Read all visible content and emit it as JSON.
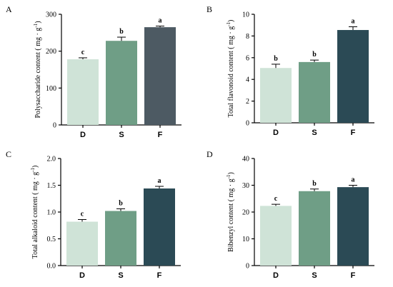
{
  "chart_data": [
    {
      "panel": "A",
      "type": "bar",
      "categories": [
        "D",
        "S",
        "F"
      ],
      "values": [
        178,
        228,
        265
      ],
      "errors": [
        4,
        10,
        3
      ],
      "significance": [
        "c",
        "b",
        "a"
      ],
      "ylabel": "Polysaccharide content ( mg · g",
      "ylabel_sup": "-1",
      "ylabel_close": ")",
      "ylim": [
        0,
        300
      ],
      "yticks": [
        "0",
        "100",
        "200",
        "300"
      ],
      "grid": false
    },
    {
      "panel": "B",
      "type": "bar",
      "categories": [
        "D",
        "S",
        "F"
      ],
      "values": [
        5.05,
        5.6,
        8.55
      ],
      "errors": [
        0.35,
        0.18,
        0.3
      ],
      "significance": [
        "b",
        "b",
        "a"
      ],
      "ylabel": "Total flavonoid content ( mg · g",
      "ylabel_sup": "-1",
      "ylabel_close": ")",
      "ylim": [
        0,
        10
      ],
      "yticks": [
        "0",
        "2",
        "4",
        "6",
        "8",
        "10"
      ],
      "grid": false
    },
    {
      "panel": "C",
      "type": "bar",
      "categories": [
        "D",
        "S",
        "F"
      ],
      "values": [
        0.82,
        1.02,
        1.44
      ],
      "errors": [
        0.04,
        0.04,
        0.04
      ],
      "significance": [
        "c",
        "b",
        "a"
      ],
      "ylabel": "Total alkaloid content ( mg · g",
      "ylabel_sup": "-1",
      "ylabel_close": ")",
      "ylim": [
        0,
        2
      ],
      "yticks": [
        "0.0",
        "0.5",
        "1.0",
        "1.5",
        "2.0"
      ],
      "grid": false
    },
    {
      "panel": "D",
      "type": "bar",
      "categories": [
        "D",
        "S",
        "F"
      ],
      "values": [
        22.3,
        27.8,
        29.3
      ],
      "errors": [
        0.6,
        0.8,
        0.7
      ],
      "significance": [
        "c",
        "b",
        "a"
      ],
      "ylabel": "Bibenzyl content ( mg · g",
      "ylabel_sup": "-1",
      "ylabel_close": ")",
      "ylim": [
        0,
        40
      ],
      "yticks": [
        "0",
        "10",
        "20",
        "30",
        "40"
      ],
      "grid": false
    }
  ],
  "colors": {
    "A": [
      "#cfe3d7",
      "#6f9e86",
      "#4d5a63"
    ],
    "B": [
      "#cfe3d7",
      "#6f9e86",
      "#2b4a55"
    ],
    "C": [
      "#cfe3d7",
      "#6f9e86",
      "#2b4a55"
    ],
    "D": [
      "#cfe3d7",
      "#6f9e86",
      "#2b4a55"
    ]
  }
}
